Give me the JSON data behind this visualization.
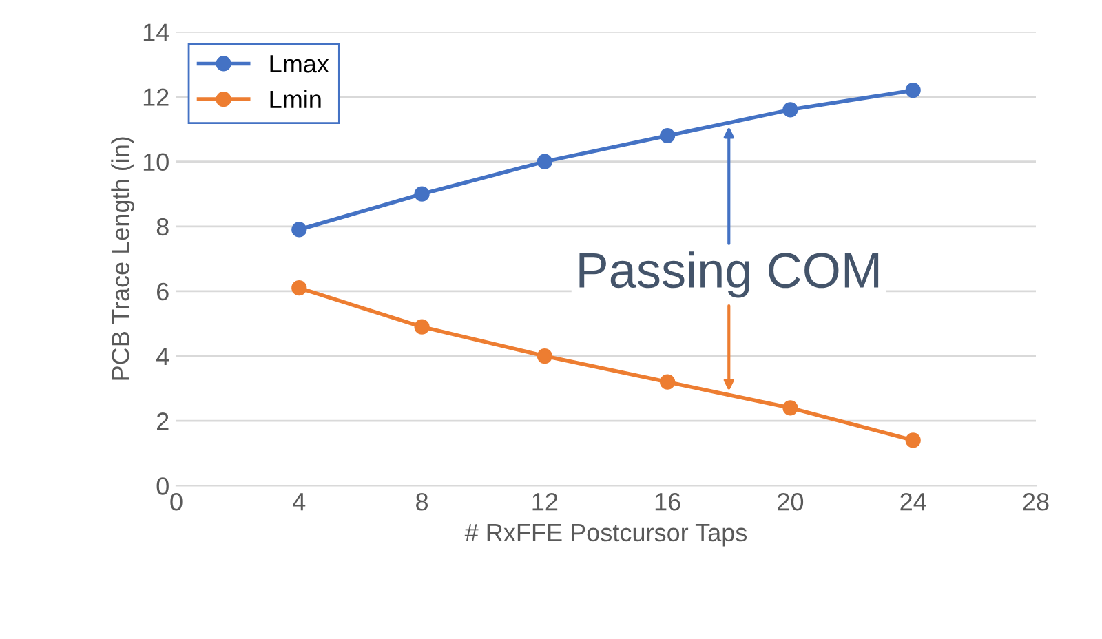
{
  "chart_data": {
    "type": "line",
    "xlabel": "# RxFFE Postcursor Taps",
    "ylabel": "PCB Trace Length (in)",
    "x": [
      4,
      8,
      12,
      16,
      20,
      24
    ],
    "series": [
      {
        "name": "Lmax",
        "color": "#4472c4",
        "values": [
          7.9,
          9.0,
          10.0,
          10.8,
          11.6,
          12.2
        ]
      },
      {
        "name": "Lmin",
        "color": "#ed7d31",
        "values": [
          6.1,
          4.9,
          4.0,
          3.2,
          2.4,
          1.4
        ]
      }
    ],
    "xlim": [
      0,
      28
    ],
    "xticks": [
      0,
      4,
      8,
      12,
      16,
      20,
      24,
      28
    ],
    "ylim": [
      0,
      14
    ],
    "yticks": [
      0,
      2,
      4,
      6,
      8,
      10,
      12,
      14
    ],
    "grid": "y",
    "legend": "top left",
    "marker": "circle",
    "line_style": "solid",
    "annotations": [
      {
        "text": "Passing COM",
        "x": 18,
        "y": 11.2
      }
    ]
  }
}
